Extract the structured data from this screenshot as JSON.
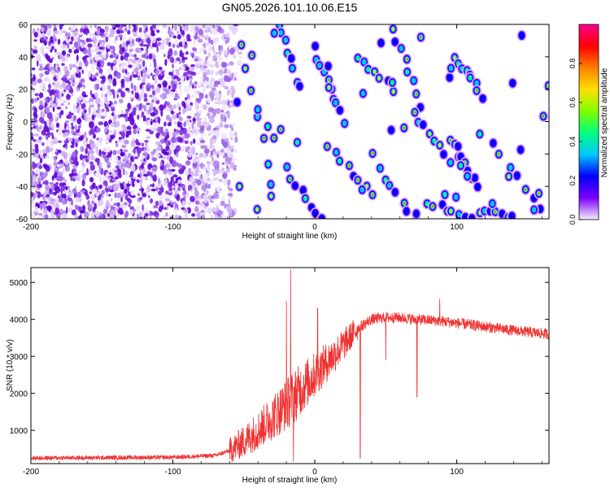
{
  "figure": {
    "title": "GN05.2026.101.10.06.E15"
  },
  "chart_data": [
    {
      "type": "heatmap",
      "title": "GN05.2026.101.10.06.E15",
      "xlabel": "Height of straight line (km)",
      "ylabel": "Frequency (Hz)",
      "xlim": [
        -200,
        165
      ],
      "ylim": [
        -60,
        60
      ],
      "xticks": [
        "-200",
        "-100",
        "0",
        "100"
      ],
      "yticks": [
        "-60",
        "-40",
        "-20",
        "0",
        "20",
        "40",
        "60"
      ],
      "colorbar": {
        "label": "Normalized spectral amplitude",
        "ticks": [
          "0.0",
          "0.2",
          "0.4",
          "0.6",
          "0.8"
        ],
        "range": [
          0,
          1
        ],
        "colors": [
          "#f4eefb",
          "#7b00ff",
          "#0000ff",
          "#00c8ff",
          "#00ff80",
          "#80ff00",
          "#ffe000",
          "#ff8000",
          "#ff0000",
          "#ff0090"
        ]
      },
      "grid": false,
      "description_note_free": true,
      "left_region_end_km": -60,
      "tracks": [
        {
          "x": [
            -55,
            -30
          ],
          "y": [
            60,
            -40
          ]
        },
        {
          "x": [
            -25,
            -10
          ],
          "y": [
            60,
            20
          ]
        },
        {
          "x": [
            -20,
            5
          ],
          "y": [
            -30,
            -60
          ]
        },
        {
          "x": [
            0,
            20
          ],
          "y": [
            45,
            0
          ]
        },
        {
          "x": [
            10,
            40
          ],
          "y": [
            -15,
            -45
          ]
        },
        {
          "x": [
            30,
            55
          ],
          "y": [
            40,
            20
          ]
        },
        {
          "x": [
            45,
            70
          ],
          "y": [
            -30,
            -60
          ]
        },
        {
          "x": [
            55,
            75
          ],
          "y": [
            58,
            10
          ]
        },
        {
          "x": [
            70,
            95
          ],
          "y": [
            5,
            -25
          ]
        },
        {
          "x": [
            80,
            110
          ],
          "y": [
            -50,
            -60
          ]
        },
        {
          "x": [
            100,
            115
          ],
          "y": [
            40,
            20
          ]
        },
        {
          "x": [
            95,
            115
          ],
          "y": [
            -10,
            -40
          ]
        },
        {
          "x": [
            125,
            160
          ],
          "y": [
            -15,
            -55
          ]
        },
        {
          "x": [
            115,
            140
          ],
          "y": [
            -55,
            -60
          ]
        }
      ]
    },
    {
      "type": "line",
      "xlabel": "Height of straight line (km)",
      "ylabel": "SNR (10 * v/v)",
      "xlim": [
        -200,
        165
      ],
      "ylim": [
        100,
        5400
      ],
      "xticks": [
        "-200",
        "-100",
        "0",
        "100"
      ],
      "yticks": [
        "1000",
        "2000",
        "3000",
        "4000",
        "5000"
      ],
      "grid": false,
      "color": "#ee3333",
      "trend": {
        "x": [
          -200,
          -150,
          -100,
          -70,
          -60,
          -50,
          -40,
          -30,
          -20,
          -10,
          0,
          10,
          20,
          30,
          40,
          50,
          60,
          70,
          80,
          90,
          100,
          120,
          140,
          165
        ],
        "y": [
          250,
          260,
          270,
          320,
          450,
          700,
          1000,
          1350,
          1700,
          2100,
          2500,
          2900,
          3300,
          3750,
          4000,
          4050,
          4050,
          4000,
          3980,
          3950,
          3900,
          3800,
          3700,
          3600
        ]
      },
      "spikes": [
        {
          "x": -17,
          "y": 5350
        },
        {
          "x": -20,
          "y": 4500
        },
        {
          "x": 2,
          "y": 4300
        },
        {
          "x": -15,
          "y": 150
        },
        {
          "x": 32,
          "y": 250
        },
        {
          "x": 50,
          "y": 2900
        },
        {
          "x": 72,
          "y": 1900
        },
        {
          "x": 88,
          "y": 4550
        }
      ]
    }
  ]
}
